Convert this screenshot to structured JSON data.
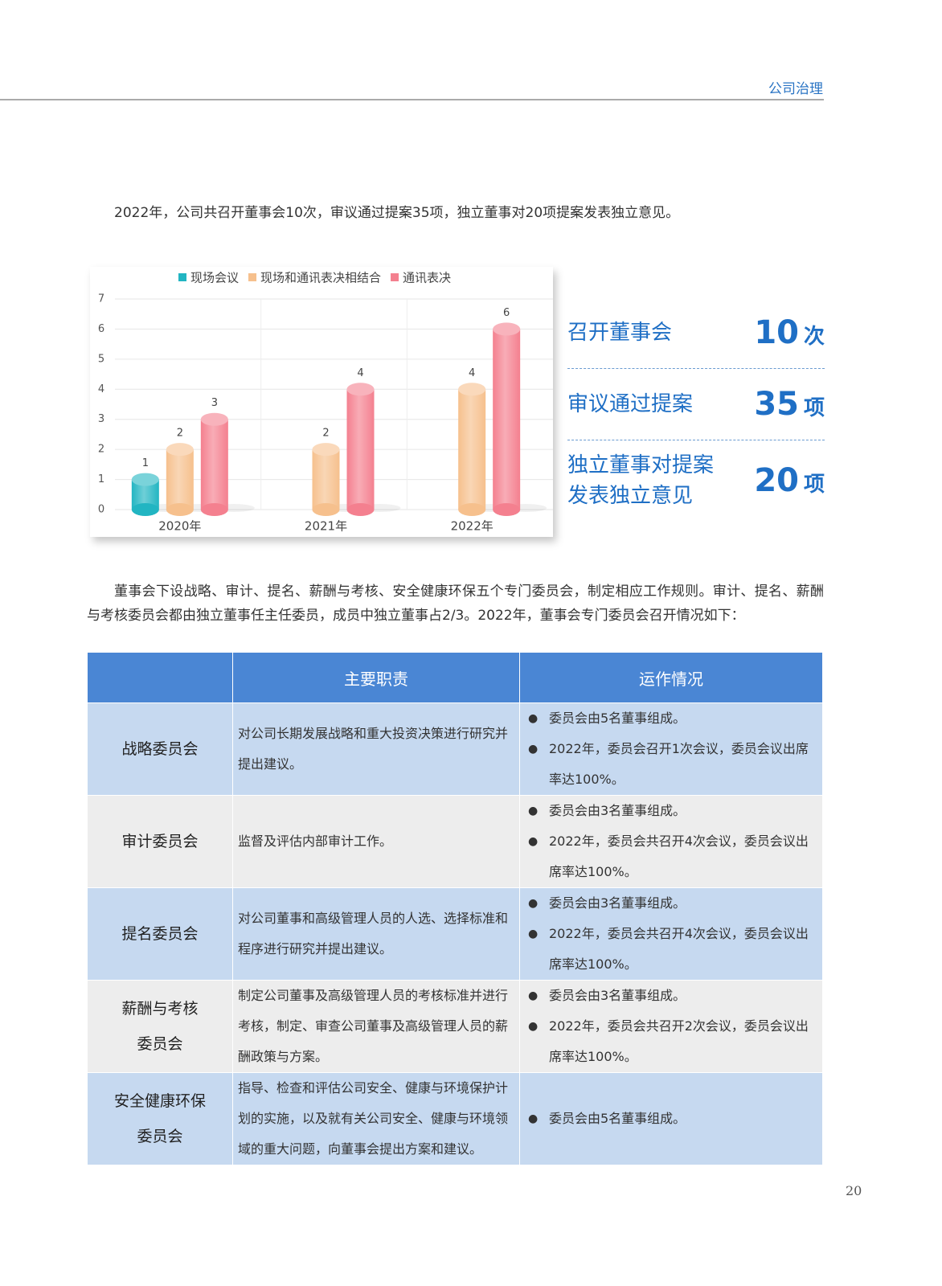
{
  "header": {
    "section": "公司治理"
  },
  "intro": "2022年，公司共召开董事会10次，审议通过提案35项，独立董事对20项提案发表独立意见。",
  "chart_data": {
    "type": "bar",
    "categories": [
      "2020年",
      "2021年",
      "2022年"
    ],
    "series": [
      {
        "name": "现场会议",
        "color": "#22b5c2",
        "values": [
          1,
          null,
          null
        ]
      },
      {
        "name": "现场和通讯表决相结合",
        "color": "#f6c08d",
        "values": [
          2,
          2,
          4
        ]
      },
      {
        "name": "通讯表决",
        "color": "#f4808f",
        "values": [
          3,
          4,
          6
        ]
      }
    ],
    "ylim": [
      0,
      7
    ],
    "yticks": [
      0,
      1,
      2,
      3,
      4,
      5,
      6,
      7
    ],
    "grid": true,
    "legend": "top"
  },
  "stats": [
    {
      "label": [
        "召开董事会"
      ],
      "value": 10,
      "unit": "次"
    },
    {
      "label": [
        "审议通过提案"
      ],
      "value": 35,
      "unit": "项"
    },
    {
      "label": [
        "独立董事对提案",
        "发表独立意见"
      ],
      "value": 20,
      "unit": "项"
    }
  ],
  "paragraph": "董事会下设战略、审计、提名、薪酬与考核、安全健康环保五个专门委员会，制定相应工作规则。审计、提名、薪酬与考核委员会都由独立董事任主任委员，成员中独立董事占2/3。2022年，董事会专门委员会召开情况如下：",
  "table": {
    "header": [
      "主要职责",
      "运作情况"
    ],
    "rows": [
      {
        "name": [
          "战略委员会"
        ],
        "duty": "对公司长期发展战略和重大投资决策进行研究并提出建议。",
        "operation": [
          "委员会由5名董事组成。",
          "2022年，委员会召开1次会议，委员会议出席率达100%。"
        ]
      },
      {
        "name": [
          "审计委员会"
        ],
        "duty": "监督及评估内部审计工作。",
        "operation": [
          "委员会由3名董事组成。",
          "2022年，委员会共召开4次会议，委员会议出席率达100%。"
        ]
      },
      {
        "name": [
          "提名委员会"
        ],
        "duty": "对公司董事和高级管理人员的人选、选择标准和程序进行研究并提出建议。",
        "operation": [
          "委员会由3名董事组成。",
          "2022年，委员会共召开4次会议，委员会议出席率达100%。"
        ]
      },
      {
        "name": [
          "薪酬与考核",
          "委员会"
        ],
        "duty": "制定公司董事及高级管理人员的考核标准并进行考核，制定、审查公司董事及高级管理人员的薪酬政策与方案。",
        "operation": [
          "委员会由3名董事组成。",
          "2022年，委员会共召开2次会议，委员会议出席率达100%。"
        ]
      },
      {
        "name": [
          "安全健康环保",
          "委员会"
        ],
        "duty": "指导、检查和评估公司安全、健康与环境保护计划的实施，以及就有关公司安全、健康与环境领域的重大问题，向董事会提出方案和建议。",
        "operation": [
          "委员会由5名董事组成。"
        ]
      }
    ]
  },
  "page_number": 20
}
